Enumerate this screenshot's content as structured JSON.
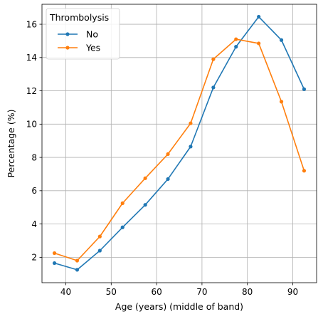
{
  "chart_data": {
    "type": "line",
    "xlabel": "Age (years) (middle of band)",
    "ylabel": "Percentage (%)",
    "xlim": [
      34.75,
      95.25
    ],
    "ylim": [
      0.475,
      17.2
    ],
    "xticks": [
      40,
      50,
      60,
      70,
      80,
      90
    ],
    "yticks": [
      2,
      4,
      6,
      8,
      10,
      12,
      14,
      16
    ],
    "grid": true,
    "legend": {
      "title": "Thrombolysis",
      "placement": "top-left"
    },
    "x": [
      37.5,
      42.5,
      47.5,
      52.5,
      57.5,
      62.5,
      67.5,
      72.5,
      77.5,
      82.5,
      87.5,
      92.5
    ],
    "series": [
      {
        "name": "No",
        "color": "#1f77b4",
        "values": [
          1.65,
          1.25,
          2.4,
          3.8,
          5.15,
          6.7,
          8.65,
          12.2,
          14.65,
          16.45,
          15.05,
          12.1
        ]
      },
      {
        "name": "Yes",
        "color": "#ff7f0e",
        "values": [
          2.25,
          1.8,
          3.25,
          5.25,
          6.75,
          8.2,
          10.05,
          13.9,
          15.1,
          14.85,
          11.35,
          7.2
        ]
      }
    ]
  }
}
